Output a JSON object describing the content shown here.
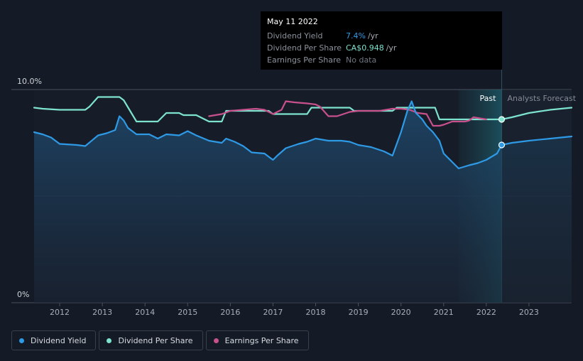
{
  "tooltip": {
    "date": "May 11 2022",
    "rows": [
      {
        "label": "Dividend Yield",
        "value": "7.4%",
        "unit": "/yr"
      },
      {
        "label": "Dividend Per Share",
        "value": "CA$0.948",
        "unit": "/yr"
      },
      {
        "label": "Earnings Per Share",
        "value": "No data"
      }
    ]
  },
  "legend": [
    {
      "label": "Dividend Yield",
      "color": "#2e9ae6"
    },
    {
      "label": "Dividend Per Share",
      "color": "#7de3cf"
    },
    {
      "label": "Earnings Per Share",
      "color": "#c8508c"
    }
  ],
  "chart_data": {
    "type": "line",
    "y_ticks": [
      {
        "value": 10,
        "label": "10.0%"
      },
      {
        "value": 0,
        "label": "0%"
      }
    ],
    "ylim": [
      0,
      10
    ],
    "xlim": [
      2011.4,
      2024.0
    ],
    "x_ticks": [
      "2012",
      "2013",
      "2014",
      "2015",
      "2016",
      "2017",
      "2018",
      "2019",
      "2020",
      "2021",
      "2022",
      "2023"
    ],
    "annotations": {
      "past": "Past",
      "forecast": "Analysts Forecast"
    },
    "colors": {
      "yield": "#2e9ae6",
      "dps": "#7de3cf",
      "eps": "#c8508c"
    },
    "series": [
      {
        "name": "Dividend Yield",
        "key": "yield",
        "x": [
          2011.4,
          2011.6,
          2011.8,
          2012.0,
          2012.4,
          2012.6,
          2012.9,
          2013.1,
          2013.3,
          2013.4,
          2013.5,
          2013.6,
          2013.8,
          2014.1,
          2014.3,
          2014.5,
          2014.8,
          2015.0,
          2015.2,
          2015.5,
          2015.8,
          2015.9,
          2016.1,
          2016.3,
          2016.5,
          2016.8,
          2017.0,
          2017.1,
          2017.3,
          2017.6,
          2017.8,
          2018.0,
          2018.3,
          2018.6,
          2018.8,
          2019.0,
          2019.3,
          2019.6,
          2019.8,
          2020.0,
          2020.15,
          2020.25,
          2020.35,
          2020.5,
          2020.6,
          2020.75,
          2020.9,
          2021.0,
          2021.2,
          2021.35,
          2021.6,
          2021.8,
          2022.0,
          2022.25,
          2022.36
        ],
        "y": [
          8.0,
          7.9,
          7.75,
          7.45,
          7.4,
          7.35,
          7.85,
          7.95,
          8.1,
          8.75,
          8.55,
          8.2,
          7.9,
          7.9,
          7.7,
          7.9,
          7.85,
          8.05,
          7.85,
          7.6,
          7.5,
          7.7,
          7.55,
          7.35,
          7.05,
          7.0,
          6.7,
          6.9,
          7.25,
          7.45,
          7.55,
          7.7,
          7.6,
          7.6,
          7.55,
          7.4,
          7.3,
          7.1,
          6.9,
          8.0,
          9.0,
          9.45,
          8.9,
          8.6,
          8.3,
          8.0,
          7.6,
          7.0,
          6.6,
          6.3,
          6.45,
          6.55,
          6.7,
          7.0,
          7.4
        ]
      },
      {
        "name": "Dividend Yield forecast",
        "key": "yield",
        "x": [
          2022.36,
          2022.6,
          2023.0,
          2023.5,
          2024.0
        ],
        "y": [
          7.4,
          7.5,
          7.6,
          7.7,
          7.8
        ]
      },
      {
        "name": "Dividend Per Share",
        "key": "dps",
        "x": [
          2011.4,
          2011.6,
          2012.0,
          2012.6,
          2012.7,
          2012.9,
          2013.4,
          2013.5,
          2013.8,
          2014.1,
          2014.3,
          2014.5,
          2014.8,
          2014.9,
          2015.2,
          2015.5,
          2015.8,
          2015.9,
          2016.5,
          2016.9,
          2017.0,
          2017.8,
          2017.9,
          2018.8,
          2018.9,
          2019.8,
          2019.9,
          2020.8,
          2020.9,
          2021.6,
          2022.36
        ],
        "y": [
          9.15,
          9.1,
          9.05,
          9.05,
          9.2,
          9.65,
          9.65,
          9.5,
          8.5,
          8.5,
          8.5,
          8.9,
          8.9,
          8.8,
          8.8,
          8.5,
          8.5,
          9.0,
          9.0,
          9.0,
          8.85,
          8.85,
          9.15,
          9.15,
          9.0,
          9.0,
          9.15,
          9.15,
          8.6,
          8.6,
          8.6
        ]
      },
      {
        "name": "Dividend Per Share forecast",
        "key": "dps",
        "x": [
          2022.36,
          2022.6,
          2023.0,
          2023.5,
          2024.0
        ],
        "y": [
          8.6,
          8.7,
          8.9,
          9.05,
          9.15
        ]
      },
      {
        "name": "Earnings Per Share",
        "key": "eps",
        "x": [
          2015.5,
          2015.8,
          2016.0,
          2016.3,
          2016.6,
          2016.8,
          2017.0,
          2017.2,
          2017.3,
          2017.5,
          2017.8,
          2018.0,
          2018.1,
          2018.3,
          2018.5,
          2018.8,
          2019.0,
          2019.5,
          2019.8,
          2020.0,
          2020.2,
          2020.4,
          2020.6,
          2020.75,
          2020.9,
          2021.0,
          2021.2,
          2021.5,
          2021.6,
          2021.7,
          2022.0
        ],
        "y": [
          8.75,
          8.85,
          9.0,
          9.05,
          9.1,
          9.05,
          8.85,
          9.05,
          9.45,
          9.4,
          9.35,
          9.3,
          9.2,
          8.75,
          8.75,
          8.95,
          9.0,
          9.0,
          9.1,
          9.1,
          9.05,
          8.9,
          8.85,
          8.3,
          8.3,
          8.35,
          8.5,
          8.5,
          8.55,
          8.7,
          8.6
        ]
      }
    ]
  }
}
